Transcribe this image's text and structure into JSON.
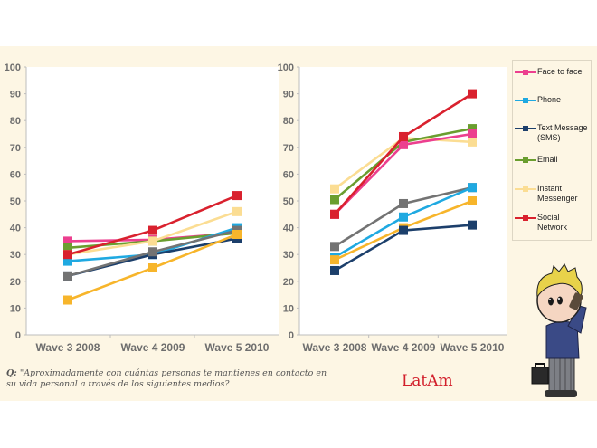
{
  "question": {
    "prefix": "Q:",
    "text": "\"Aproximadamente con cuántas personas te mantienes en contacto en su vida personal a través de los siguientes medios?"
  },
  "region_label": "LatAm",
  "colors": {
    "panel_background": "#fdf6e4",
    "region_label": "#d21f2b"
  },
  "legend": {
    "items": [
      {
        "label": "Face to face",
        "color": "#ec3f8f"
      },
      {
        "label": "Phone",
        "color": "#1fa9e1"
      },
      {
        "label": "Text Message (SMS)",
        "color": "#1c3f6b"
      },
      {
        "label": "Email",
        "color": "#6a9e2f"
      },
      {
        "label": "Instant Messenger",
        "color": "#fbdd93"
      },
      {
        "label": "Social Network",
        "color": "#d9212e"
      }
    ]
  },
  "chart_data": [
    {
      "type": "line",
      "title": "",
      "xlabel": "",
      "ylabel": "",
      "categories": [
        "Wave 3 2008",
        "Wave 4 2009",
        "Wave 5 2010"
      ],
      "ylim": [
        0,
        100
      ],
      "yticks": [
        0,
        10,
        20,
        30,
        40,
        50,
        60,
        70,
        80,
        90,
        100
      ],
      "grid": false,
      "legend": "none",
      "series": [
        {
          "name": "Face to face",
          "color": "#ec3f8f",
          "values": [
            35,
            35.5,
            38
          ]
        },
        {
          "name": "Email",
          "color": "#6a9e2f",
          "values": [
            32.5,
            35,
            38
          ]
        },
        {
          "name": "Instant Messenger",
          "color": "#fbdd93",
          "values": [
            30,
            35,
            46
          ]
        },
        {
          "name": "Phone",
          "color": "#1fa9e1",
          "values": [
            27.5,
            30,
            40
          ]
        },
        {
          "name": "Text Message (SMS)",
          "color": "#1c3f6b",
          "values": [
            22,
            30,
            36
          ]
        },
        {
          "name": "Unlabeled (gray)",
          "color": "#737373",
          "values": [
            22,
            31,
            39
          ]
        },
        {
          "name": "Unlabeled (orange)",
          "color": "#f7b52b",
          "values": [
            13,
            25,
            37.5
          ]
        },
        {
          "name": "Social Network",
          "color": "#d9212e",
          "values": [
            30,
            39,
            52
          ]
        }
      ]
    },
    {
      "type": "line",
      "title": "",
      "xlabel": "",
      "ylabel": "",
      "categories": [
        "Wave 3 2008",
        "Wave 4 2009",
        "Wave 5 2010"
      ],
      "ylim": [
        0,
        100
      ],
      "yticks": [
        0,
        10,
        20,
        30,
        40,
        50,
        60,
        70,
        80,
        90,
        100
      ],
      "grid": false,
      "legend": "right",
      "series": [
        {
          "name": "Instant Messenger",
          "color": "#fbdd93",
          "values": [
            54.5,
            73.5,
            72
          ]
        },
        {
          "name": "Email",
          "color": "#6a9e2f",
          "values": [
            50.5,
            72,
            77
          ]
        },
        {
          "name": "Face to face",
          "color": "#ec3f8f",
          "values": [
            45,
            71,
            75
          ]
        },
        {
          "name": "Unlabeled (gray)",
          "color": "#737373",
          "values": [
            33,
            49,
            55
          ]
        },
        {
          "name": "Phone",
          "color": "#1fa9e1",
          "values": [
            29,
            44,
            55
          ]
        },
        {
          "name": "Unlabeled (orange)",
          "color": "#f7b52b",
          "values": [
            28,
            40,
            50
          ]
        },
        {
          "name": "Text Message (SMS)",
          "color": "#1c3f6b",
          "values": [
            24,
            39,
            41
          ]
        },
        {
          "name": "Social Network",
          "color": "#d9212e",
          "values": [
            45,
            74,
            90
          ]
        }
      ]
    }
  ]
}
